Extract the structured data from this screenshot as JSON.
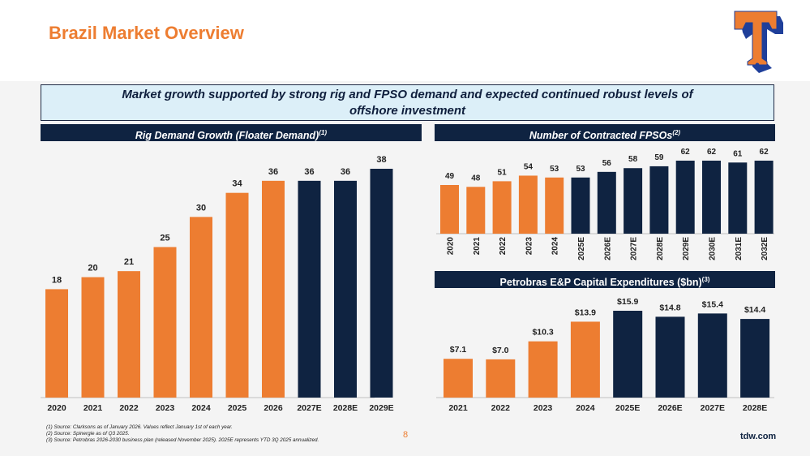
{
  "title": "Brazil Market Overview",
  "banner": {
    "line1": "Market growth supported by strong rig and FPSO demand and expected continued robust levels of",
    "line2": "offshore investment"
  },
  "colors": {
    "actual": "#ED7D31",
    "estimate": "#0F2341",
    "header": "#0F2341"
  },
  "chart_data": [
    {
      "type": "bar",
      "title": "Rig Demand Growth (Floater Demand)",
      "title_note": "(1)",
      "categories": [
        "2020",
        "2021",
        "2022",
        "2023",
        "2024",
        "2025",
        "2026",
        "2027E",
        "2028E",
        "2029E"
      ],
      "values": [
        18,
        20,
        21,
        25,
        30,
        34,
        36,
        36,
        36,
        38
      ],
      "value_labels": [
        "18",
        "20",
        "21",
        "25",
        "30",
        "34",
        "36",
        "36",
        "36",
        "38"
      ],
      "estimate": [
        false,
        false,
        false,
        false,
        false,
        false,
        false,
        true,
        true,
        true
      ],
      "ylim": [
        0,
        38
      ]
    },
    {
      "type": "bar",
      "title": "Number of Contracted FPSOs",
      "title_note": "(2)",
      "categories": [
        "2020",
        "2021",
        "2022",
        "2023",
        "2024",
        "2025E",
        "2026E",
        "2027E",
        "2028E",
        "2029E",
        "2030E",
        "2031E",
        "2032E"
      ],
      "values": [
        49,
        48,
        51,
        54,
        53,
        53,
        56,
        58,
        59,
        62,
        62,
        61,
        62
      ],
      "value_labels": [
        "49",
        "48",
        "51",
        "54",
        "53",
        "53",
        "56",
        "58",
        "59",
        "62",
        "62",
        "61",
        "62"
      ],
      "estimate": [
        false,
        false,
        false,
        false,
        false,
        true,
        true,
        true,
        true,
        true,
        true,
        true,
        true
      ],
      "ylim": [
        23,
        62
      ]
    },
    {
      "type": "bar",
      "title": "Petrobras E&P Capital Expenditures ($bn)",
      "title_note": "(3)",
      "categories": [
        "2021",
        "2022",
        "2023",
        "2024",
        "2025E",
        "2026E",
        "2027E",
        "2028E"
      ],
      "values": [
        7.1,
        7.0,
        10.3,
        13.9,
        15.9,
        14.8,
        15.4,
        14.4
      ],
      "value_labels": [
        "$7.1",
        "$7.0",
        "$10.3",
        "$13.9",
        "$15.9",
        "$14.8",
        "$15.4",
        "$14.4"
      ],
      "estimate": [
        false,
        false,
        false,
        false,
        true,
        true,
        true,
        true
      ],
      "ylim": [
        0,
        15.9
      ]
    }
  ],
  "footnotes": [
    "(1) Source: Clarksons as of January 2026. Values reflect January 1st of each year.",
    "(2) Source: Spinergie as of Q3 2025.",
    "(3) Source: Petrobras 2026-2030 business plan (released November 2025). 2025E represents YTD 3Q 2025 annualized."
  ],
  "page_number": "8",
  "website": "tdw.com",
  "logo": {
    "icon": "tidewater-t-logo"
  }
}
